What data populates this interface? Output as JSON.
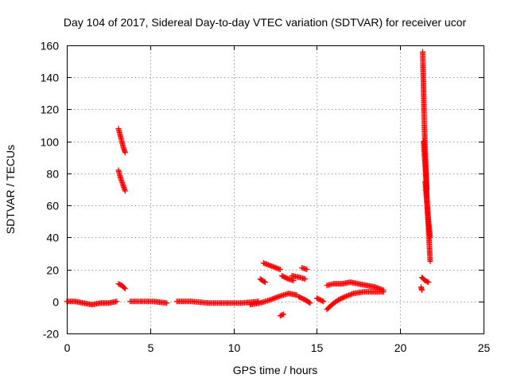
{
  "chart_data": {
    "type": "scatter",
    "title": "Day 104 of 2017, Sidereal Day-to-day VTEC variation (SDTVAR) for receiver ucor",
    "xlabel": "GPS time / hours",
    "ylabel": "SDTVAR / TECUs",
    "xlim": [
      0,
      25
    ],
    "ylim": [
      -20,
      160
    ],
    "xticks": [
      0,
      5,
      10,
      15,
      20,
      25
    ],
    "yticks": [
      -20,
      0,
      20,
      40,
      60,
      80,
      100,
      120,
      140,
      160
    ],
    "grid": true,
    "marker": "+",
    "marker_color": "#ff0000",
    "series": [
      {
        "name": "SDTVAR",
        "segments": [
          {
            "x": [
              0.0,
              0.5,
              1.0,
              1.5,
              2.0,
              2.5,
              3.0
            ],
            "y": [
              0,
              0,
              -1,
              -2,
              -1,
              -1,
              0
            ]
          },
          {
            "x": [
              3.1,
              3.2,
              3.3,
              3.4,
              3.5
            ],
            "y": [
              108,
              104,
              100,
              96,
              93
            ]
          },
          {
            "x": [
              3.1,
              3.2,
              3.3,
              3.4,
              3.5
            ],
            "y": [
              82,
              78,
              75,
              72,
              69
            ]
          },
          {
            "x": [
              3.1,
              3.3,
              3.5
            ],
            "y": [
              11,
              10,
              8
            ]
          },
          {
            "x": [
              3.8,
              4.5,
              5.2,
              6.0
            ],
            "y": [
              0,
              0,
              0,
              -1
            ]
          },
          {
            "x": [
              6.6,
              7.5,
              8.5,
              9.5,
              10.5,
              11.5
            ],
            "y": [
              0,
              0,
              -1,
              -1,
              -1,
              0
            ]
          },
          {
            "x": [
              11.8,
              12.3,
              12.8
            ],
            "y": [
              24,
              22,
              20
            ]
          },
          {
            "x": [
              11.6,
              11.9
            ],
            "y": [
              14,
              12
            ]
          },
          {
            "x": [
              11.0,
              11.6,
              12.2,
              12.7,
              13.3,
              13.8
            ],
            "y": [
              -2,
              -1,
              1,
              3,
              5,
              4
            ]
          },
          {
            "x": [
              12.9,
              13.3,
              13.6
            ],
            "y": [
              16,
              14,
              13
            ]
          },
          {
            "x": [
              13.5,
              14.0,
              14.3
            ],
            "y": [
              16,
              15,
              14
            ]
          },
          {
            "x": [
              14.1,
              14.4
            ],
            "y": [
              21,
              20
            ]
          },
          {
            "x": [
              12.8,
              13.0
            ],
            "y": [
              -9,
              -8
            ]
          },
          {
            "x": [
              13.9,
              14.3,
              14.6
            ],
            "y": [
              3,
              1,
              -1
            ]
          },
          {
            "x": [
              15.0,
              15.4
            ],
            "y": [
              2,
              0
            ]
          },
          {
            "x": [
              15.6,
              16.0,
              16.5,
              17.0,
              17.5,
              18.0,
              18.5,
              19.0
            ],
            "y": [
              10,
              11,
              11,
              12,
              11,
              10,
              9,
              7
            ]
          },
          {
            "x": [
              15.6,
              15.9,
              16.3,
              16.7,
              17.2,
              17.8,
              18.4,
              19.0
            ],
            "y": [
              -5,
              -2,
              1,
              3,
              5,
              6,
              6,
              6
            ]
          },
          {
            "x": [
              21.35,
              21.4,
              21.45,
              21.5,
              21.55,
              21.6,
              21.7,
              21.8
            ],
            "y": [
              156,
              135,
              110,
              95,
              80,
              65,
              45,
              25
            ]
          },
          {
            "x": [
              21.4,
              21.5,
              21.6
            ],
            "y": [
              100,
              85,
              70
            ]
          },
          {
            "x": [
              21.5,
              21.6,
              21.7,
              21.8
            ],
            "y": [
              75,
              62,
              50,
              40
            ]
          },
          {
            "x": [
              21.3,
              21.5,
              21.7
            ],
            "y": [
              15,
              13,
              12
            ]
          },
          {
            "x": [
              21.25,
              21.3
            ],
            "y": [
              9,
              7
            ]
          }
        ]
      }
    ]
  }
}
